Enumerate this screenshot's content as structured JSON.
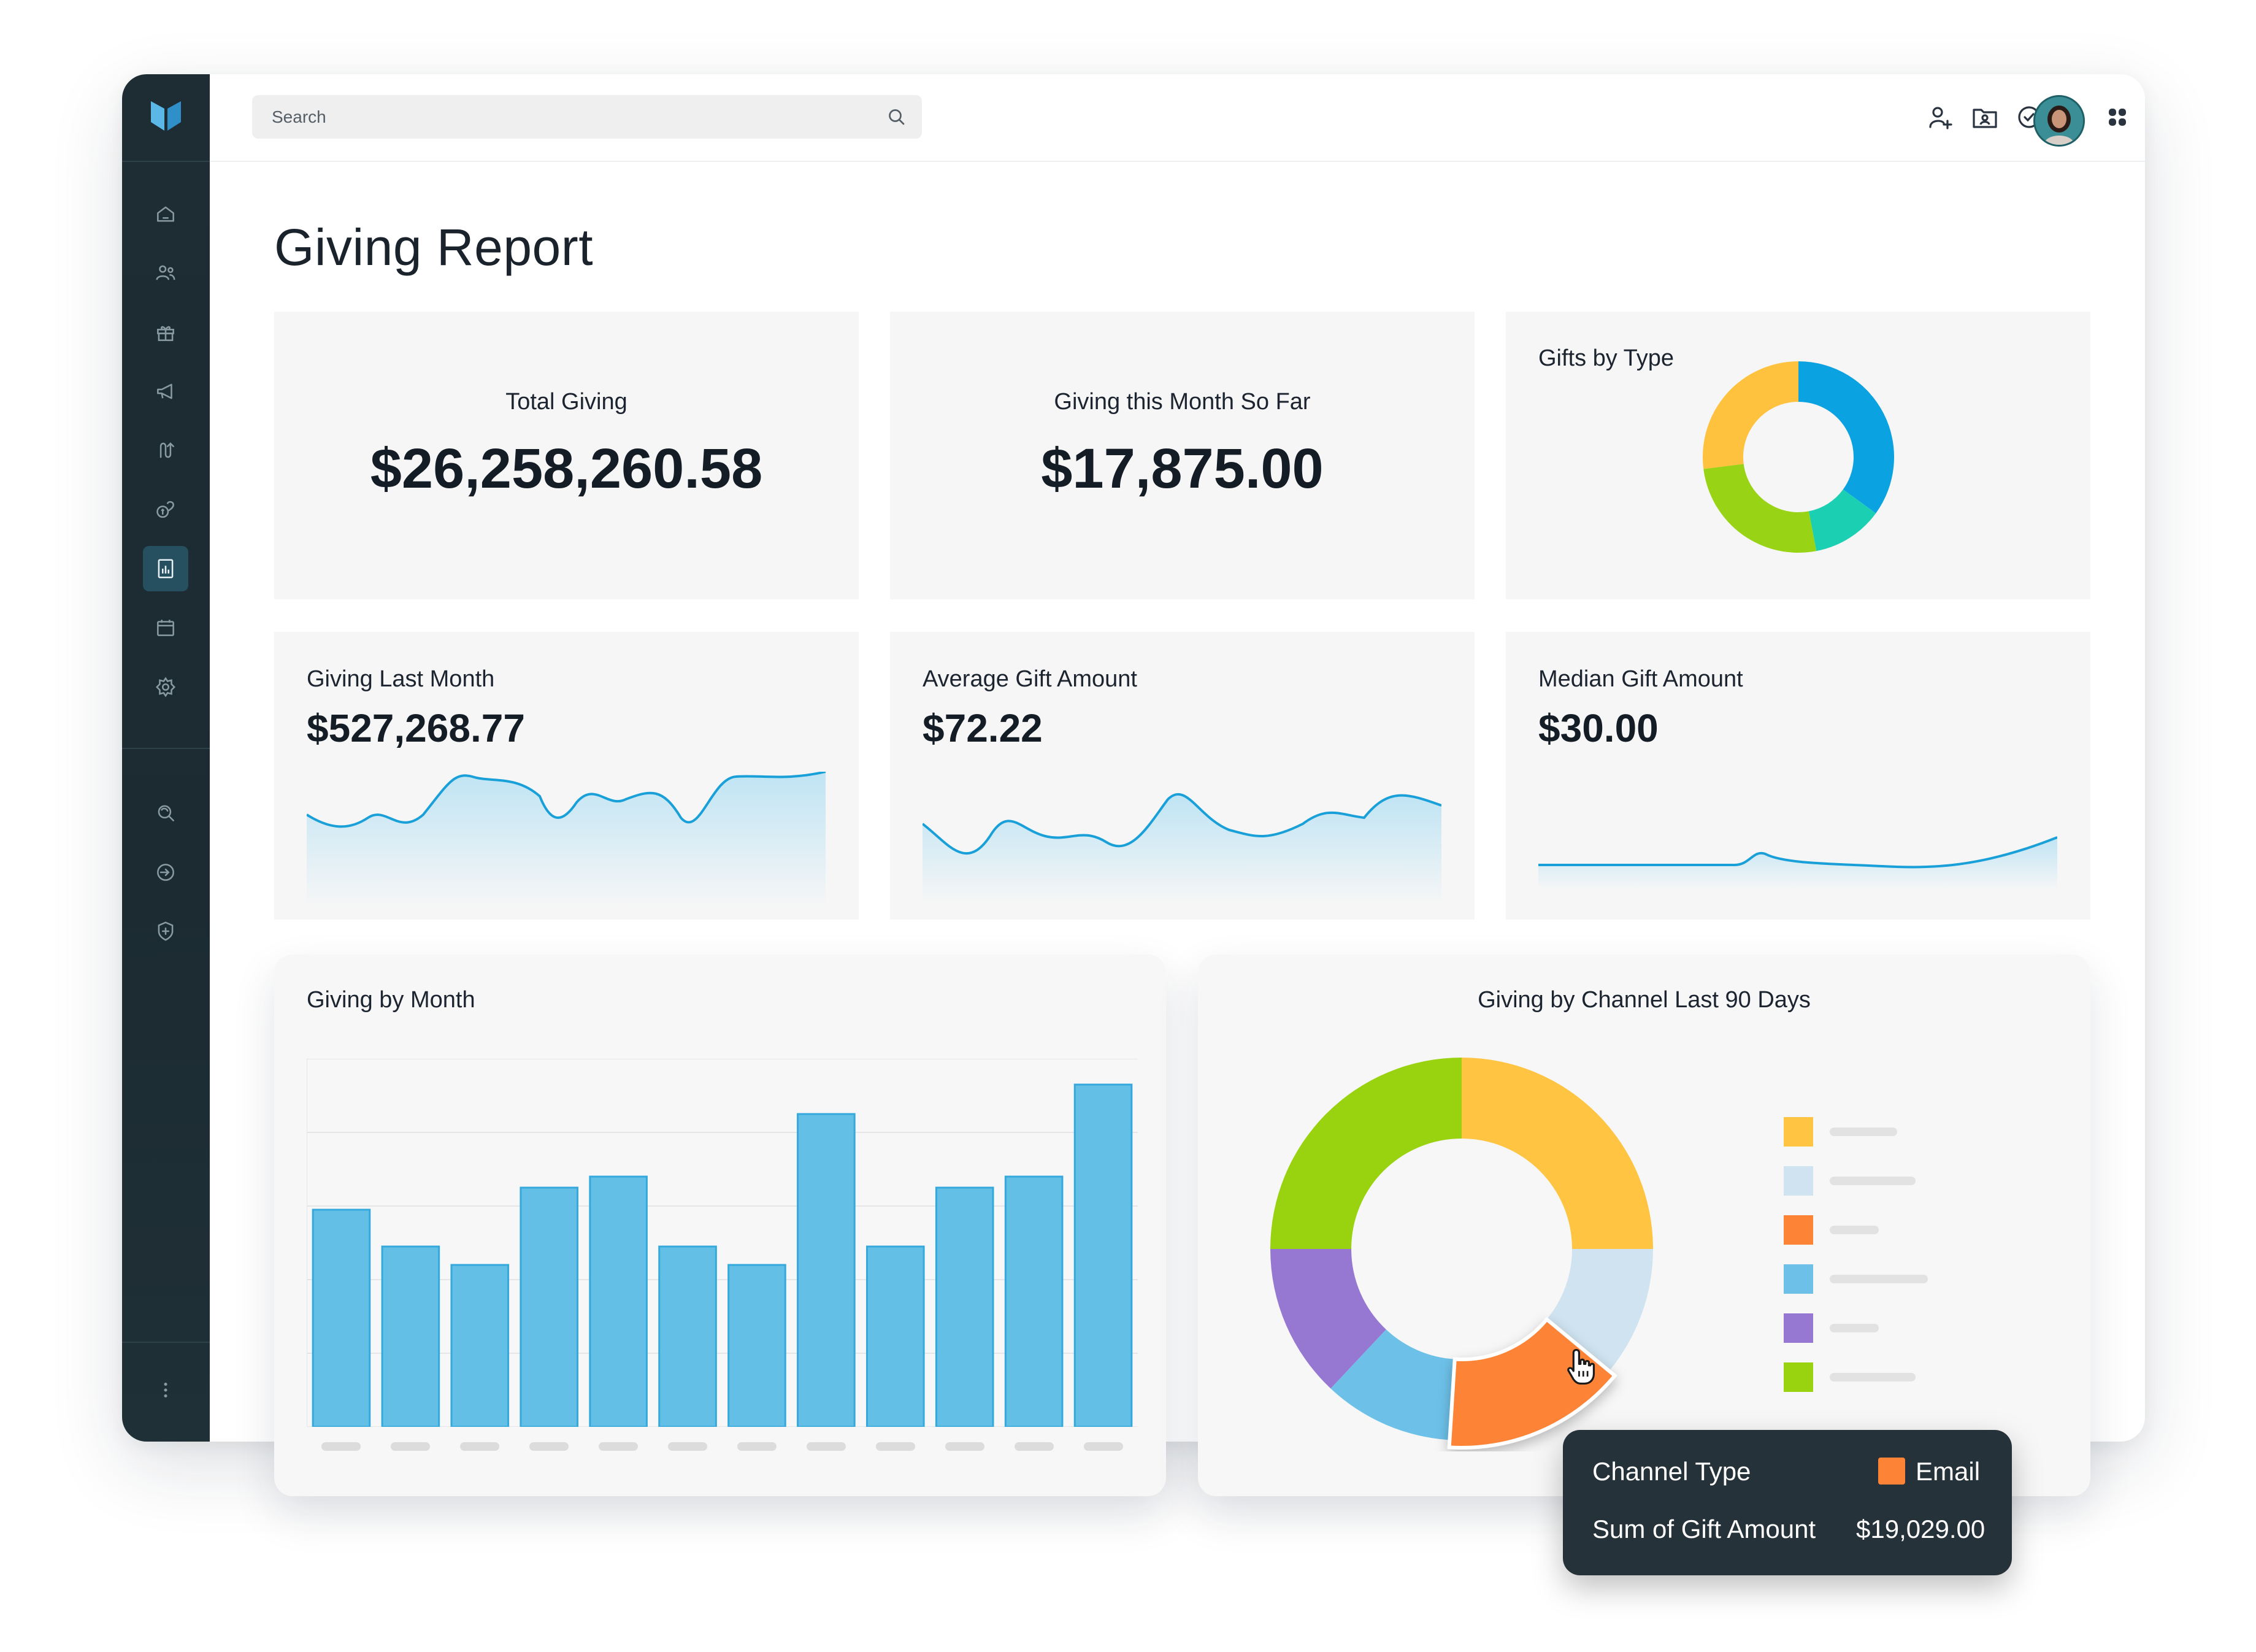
{
  "search": {
    "placeholder": "Search"
  },
  "sidebar": {
    "items": [
      {
        "icon": "home-icon"
      },
      {
        "icon": "people-icon"
      },
      {
        "icon": "gift-icon"
      },
      {
        "icon": "megaphone-icon"
      },
      {
        "icon": "workflow-icon"
      },
      {
        "icon": "donation-icon"
      },
      {
        "icon": "report-icon",
        "active": true
      },
      {
        "icon": "calendar-icon"
      },
      {
        "icon": "settings-icon"
      },
      {
        "icon": "search-refresh-icon"
      },
      {
        "icon": "sign-in-icon"
      },
      {
        "icon": "shield-plus-icon"
      }
    ],
    "more_icon": "vertical-dots-icon"
  },
  "topbar": {
    "icons": [
      "add-user-icon",
      "contact-folder-icon",
      "check-circle-icon",
      "help-icon",
      "apps-grid-icon"
    ]
  },
  "page": {
    "title": "Giving Report"
  },
  "kpis": {
    "total_giving": {
      "label": "Total Giving",
      "value": "$26,258,260.58"
    },
    "month_so_far": {
      "label": "Giving this Month So Far",
      "value": "$17,875.00"
    },
    "gifts_by_type": {
      "label": "Gifts by Type"
    },
    "last_month": {
      "label": "Giving Last Month",
      "value": "$527,268.77"
    },
    "avg_gift": {
      "label": "Average Gift Amount",
      "value": "$72.22"
    },
    "median_gift": {
      "label": "Median Gift Amount",
      "value": "$30.00"
    }
  },
  "giving_by_month": {
    "title": "Giving by Month"
  },
  "giving_by_channel": {
    "title": "Giving by Channel Last 90 Days"
  },
  "tooltip": {
    "row1_label": "Channel Type",
    "row1_value": "Email",
    "row1_color": "#fd8437",
    "row2_label": "Sum of Gift Amount",
    "row2_value": "$19,029.00"
  },
  "colors": {
    "accent": "#29abe2",
    "bar": "#63bfe6",
    "sidebar": "#1e2d34"
  },
  "chart_data": [
    {
      "type": "pie",
      "title": "Gifts by Type",
      "values": [
        35,
        12,
        26,
        27
      ],
      "colors": [
        "#0aa2e0",
        "#1bd0b2",
        "#98d415",
        "#ffc23f"
      ]
    },
    {
      "type": "bar",
      "title": "Giving by Month",
      "values": [
        59,
        49,
        44,
        65,
        68,
        49,
        44,
        85,
        49,
        65,
        68,
        93
      ],
      "ylim": [
        0,
        100
      ],
      "grid": true
    },
    {
      "type": "pie",
      "title": "Giving by Channel Last 90 Days",
      "values": [
        25,
        11,
        15,
        11,
        13,
        25
      ],
      "colors": [
        "#fec442",
        "#cfe3f0",
        "#fd8437",
        "#6dc1e9",
        "#9678d3",
        "#99d310"
      ],
      "legend": "right"
    }
  ]
}
